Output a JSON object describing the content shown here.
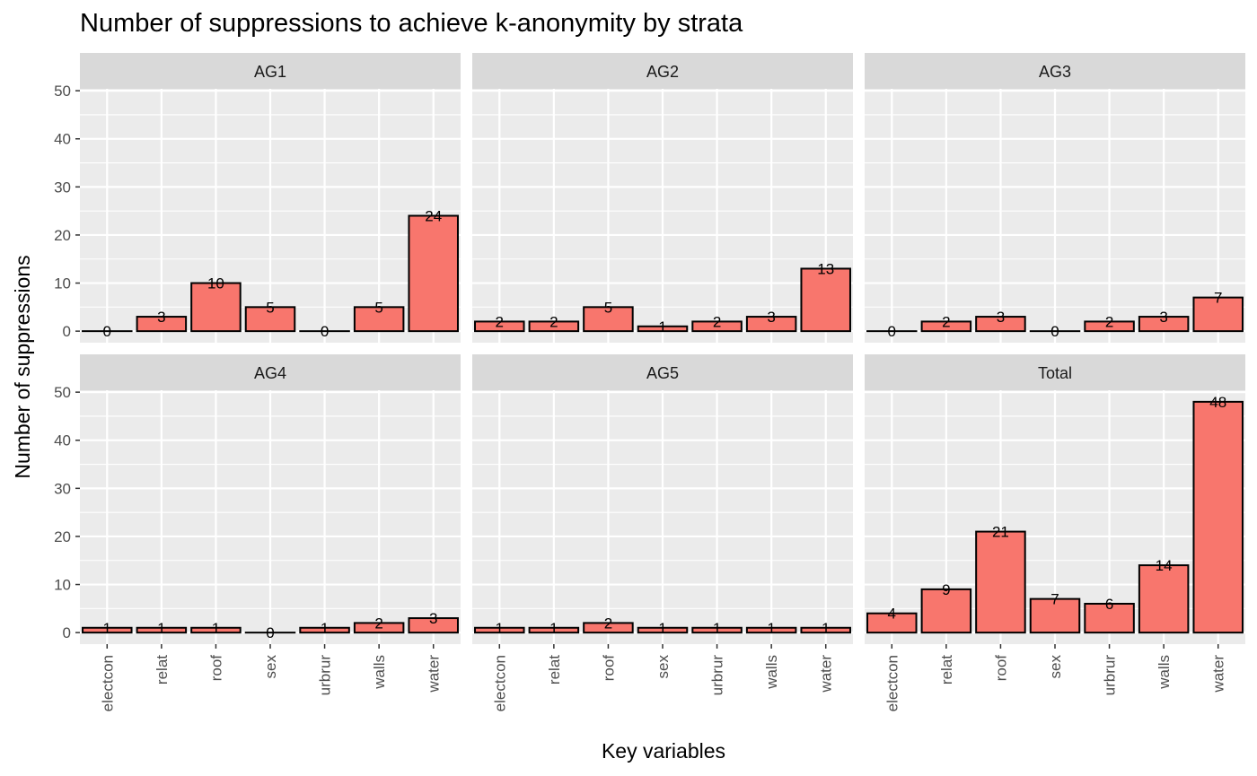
{
  "chart_data": {
    "type": "bar",
    "title": "Number of suppressions to achieve k-anonymity by strata",
    "xlabel": "Key variables",
    "ylabel": "Number of suppressions",
    "categories": [
      "electcon",
      "relat",
      "roof",
      "sex",
      "urbrur",
      "walls",
      "water"
    ],
    "yticks": [
      0,
      10,
      20,
      30,
      40,
      50
    ],
    "ylim": [
      -2.4,
      50.4
    ],
    "grid": true,
    "bar_color": "#F8766D",
    "bar_outline": "#000000",
    "panel_background": "#EBEBEB",
    "strip_background": "#D9D9D9",
    "facets": [
      {
        "label": "AG1",
        "values": [
          0,
          3,
          10,
          5,
          0,
          5,
          24
        ]
      },
      {
        "label": "AG2",
        "values": [
          2,
          2,
          5,
          1,
          2,
          3,
          13
        ]
      },
      {
        "label": "AG3",
        "values": [
          0,
          2,
          3,
          0,
          2,
          3,
          7
        ]
      },
      {
        "label": "AG4",
        "values": [
          1,
          1,
          1,
          0,
          1,
          2,
          3
        ]
      },
      {
        "label": "AG5",
        "values": [
          1,
          1,
          2,
          1,
          1,
          1,
          1
        ]
      },
      {
        "label": "Total",
        "values": [
          4,
          9,
          21,
          7,
          6,
          14,
          48
        ]
      }
    ]
  }
}
